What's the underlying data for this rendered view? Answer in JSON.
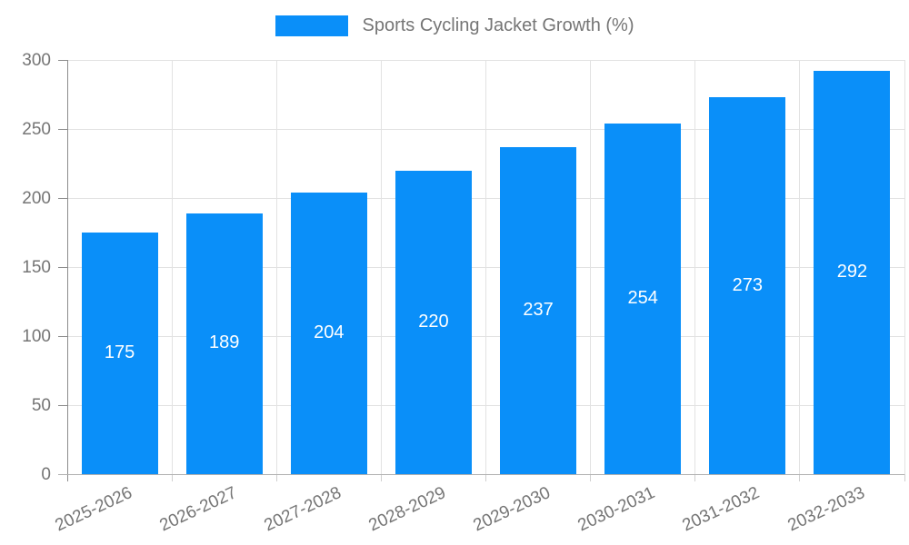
{
  "chart_data": {
    "type": "bar",
    "title": "Sports Cycling Jacket Growth (%)",
    "categories": [
      "2025-2026",
      "2026-2027",
      "2027-2028",
      "2028-2029",
      "2029-2030",
      "2030-2031",
      "2031-2032",
      "2032-2033"
    ],
    "values": [
      175,
      189,
      204,
      220,
      237,
      254,
      273,
      292
    ],
    "xlabel": "",
    "ylabel": "",
    "ylim": [
      0,
      300
    ],
    "yticks": [
      0,
      50,
      100,
      150,
      200,
      250,
      300
    ],
    "grid": true,
    "legend_position": "top-center",
    "colors": {
      "bar": "#0a8ff9",
      "bar_value_text": "#ffffff",
      "axis_text": "#757575",
      "grid_line": "#e2e2e2",
      "axis_line": "#8c8c8c",
      "baseline": "#b0b0b0",
      "minor_tick": "#cfcfcf",
      "background": "#ffffff"
    }
  }
}
